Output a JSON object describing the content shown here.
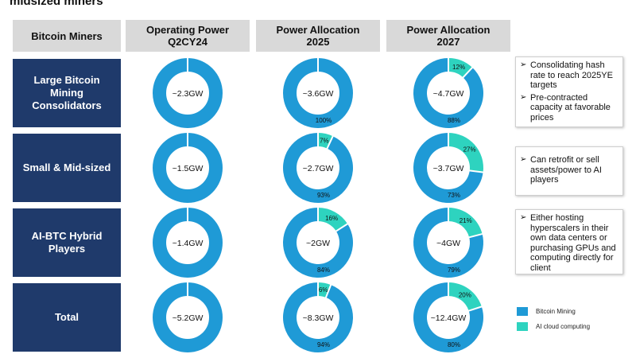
{
  "title": "midsized miners",
  "headers": {
    "col0": "Bitcoin Miners",
    "col1": "Operating Power\nQ2CY24",
    "col2": "Power Allocation\n2025",
    "col3": "Power Allocation\n2027"
  },
  "rows": [
    {
      "label": "Large Bitcoin\nMining\nConsolidators"
    },
    {
      "label": "Small & Mid-sized"
    },
    {
      "label": "AI-BTC Hybrid\nPlayers"
    },
    {
      "label": "Total"
    }
  ],
  "notes": [
    [
      "Consolidating hash rate to reach 2025YE targets",
      "Pre-contracted capacity at favorable prices"
    ],
    [
      "Can retrofit or sell assets/power to AI players"
    ],
    [
      "Either hosting hyperscalers in their own data centers or purchasing GPUs and computing directly for client"
    ]
  ],
  "legend": [
    {
      "label": "Bitcoin Mining",
      "color": "#1f9ad6"
    },
    {
      "label": "AI cloud computing",
      "color": "#2ed3bf"
    }
  ],
  "colors": {
    "btc": "#1f9ad6",
    "ai": "#2ed3bf",
    "row_label_bg": "#1f3a6b",
    "header_bg": "#d9d9d9"
  },
  "chart_data": {
    "type": "donut-grid",
    "series_names": [
      "Bitcoin Mining",
      "AI cloud computing"
    ],
    "columns": [
      "Operating Power Q2CY24",
      "Power Allocation 2025",
      "Power Allocation 2027"
    ],
    "rows": [
      "Large Bitcoin Mining Consolidators",
      "Small & Mid-sized",
      "AI-BTC Hybrid Players",
      "Total"
    ],
    "cells": [
      [
        {
          "center": "~2.3GW",
          "btc": 100,
          "ai": 0,
          "btc_label": "",
          "ai_label": ""
        },
        {
          "center": "~3.6GW",
          "btc": 100,
          "ai": 0,
          "btc_label": "100%",
          "ai_label": ""
        },
        {
          "center": "~4.7GW",
          "btc": 88,
          "ai": 12,
          "btc_label": "88%",
          "ai_label": "12%"
        }
      ],
      [
        {
          "center": "~1.5GW",
          "btc": 100,
          "ai": 0,
          "btc_label": "",
          "ai_label": ""
        },
        {
          "center": "~2.7GW",
          "btc": 93,
          "ai": 7,
          "btc_label": "93%",
          "ai_label": "7%"
        },
        {
          "center": "~3.7GW",
          "btc": 73,
          "ai": 27,
          "btc_label": "73%",
          "ai_label": "27%"
        }
      ],
      [
        {
          "center": "~1.4GW",
          "btc": 100,
          "ai": 0,
          "btc_label": "",
          "ai_label": ""
        },
        {
          "center": "~2GW",
          "btc": 84,
          "ai": 16,
          "btc_label": "84%",
          "ai_label": "16%"
        },
        {
          "center": "~4GW",
          "btc": 79,
          "ai": 21,
          "btc_label": "79%",
          "ai_label": "21%"
        }
      ],
      [
        {
          "center": "~5.2GW",
          "btc": 100,
          "ai": 0,
          "btc_label": "",
          "ai_label": ""
        },
        {
          "center": "~8.3GW",
          "btc": 94,
          "ai": 6,
          "btc_label": "94%",
          "ai_label": "6%"
        },
        {
          "center": "~12.4GW",
          "btc": 80,
          "ai": 20,
          "btc_label": "80%",
          "ai_label": "20%"
        }
      ]
    ]
  }
}
